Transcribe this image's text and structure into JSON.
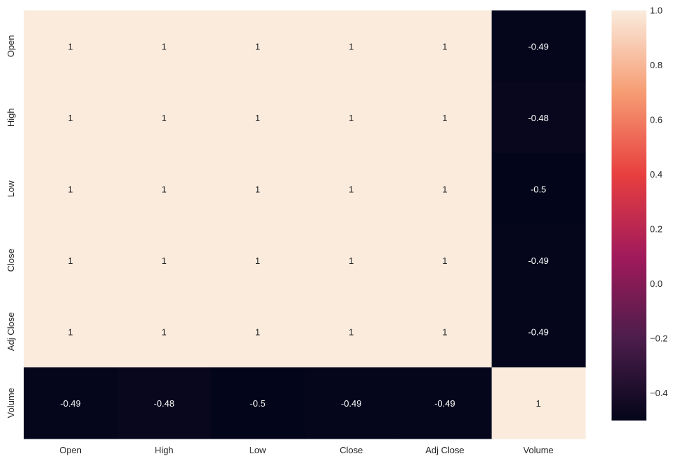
{
  "chart_data": {
    "type": "heatmap",
    "x_labels": [
      "Open",
      "High",
      "Low",
      "Close",
      "Adj Close",
      "Volume"
    ],
    "y_labels": [
      "Open",
      "High",
      "Low",
      "Close",
      "Adj Close",
      "Volume"
    ],
    "values": [
      [
        1.0,
        1.0,
        1.0,
        1.0,
        1.0,
        -0.49
      ],
      [
        1.0,
        1.0,
        1.0,
        1.0,
        1.0,
        -0.48
      ],
      [
        1.0,
        1.0,
        1.0,
        1.0,
        1.0,
        -0.5
      ],
      [
        1.0,
        1.0,
        1.0,
        1.0,
        1.0,
        -0.49
      ],
      [
        1.0,
        1.0,
        1.0,
        1.0,
        1.0,
        -0.49
      ],
      [
        -0.49,
        -0.48,
        -0.5,
        -0.49,
        -0.49,
        1.0
      ]
    ],
    "annotations": [
      [
        "1",
        "1",
        "1",
        "1",
        "1",
        "-0.49"
      ],
      [
        "1",
        "1",
        "1",
        "1",
        "1",
        "-0.48"
      ],
      [
        "1",
        "1",
        "1",
        "1",
        "1",
        "-0.5"
      ],
      [
        "1",
        "1",
        "1",
        "1",
        "1",
        "-0.49"
      ],
      [
        "1",
        "1",
        "1",
        "1",
        "1",
        "-0.49"
      ],
      [
        "-0.49",
        "-0.48",
        "-0.5",
        "-0.49",
        "-0.49",
        "1"
      ]
    ],
    "colorbar": {
      "range": [
        -0.5,
        1.0
      ],
      "ticks": [
        1.0,
        0.8,
        0.6,
        0.4,
        0.2,
        0.0,
        -0.2,
        -0.4
      ],
      "tick_labels": [
        "1.0",
        "0.8",
        "0.6",
        "0.4",
        "0.2",
        "0.0",
        "−0.2",
        "−0.4"
      ],
      "colormap": "rocket",
      "colors": [
        "#03051a",
        "#4c1d4b",
        "#a11a5b",
        "#e83f3f",
        "#f69c73",
        "#faebdd"
      ]
    }
  }
}
